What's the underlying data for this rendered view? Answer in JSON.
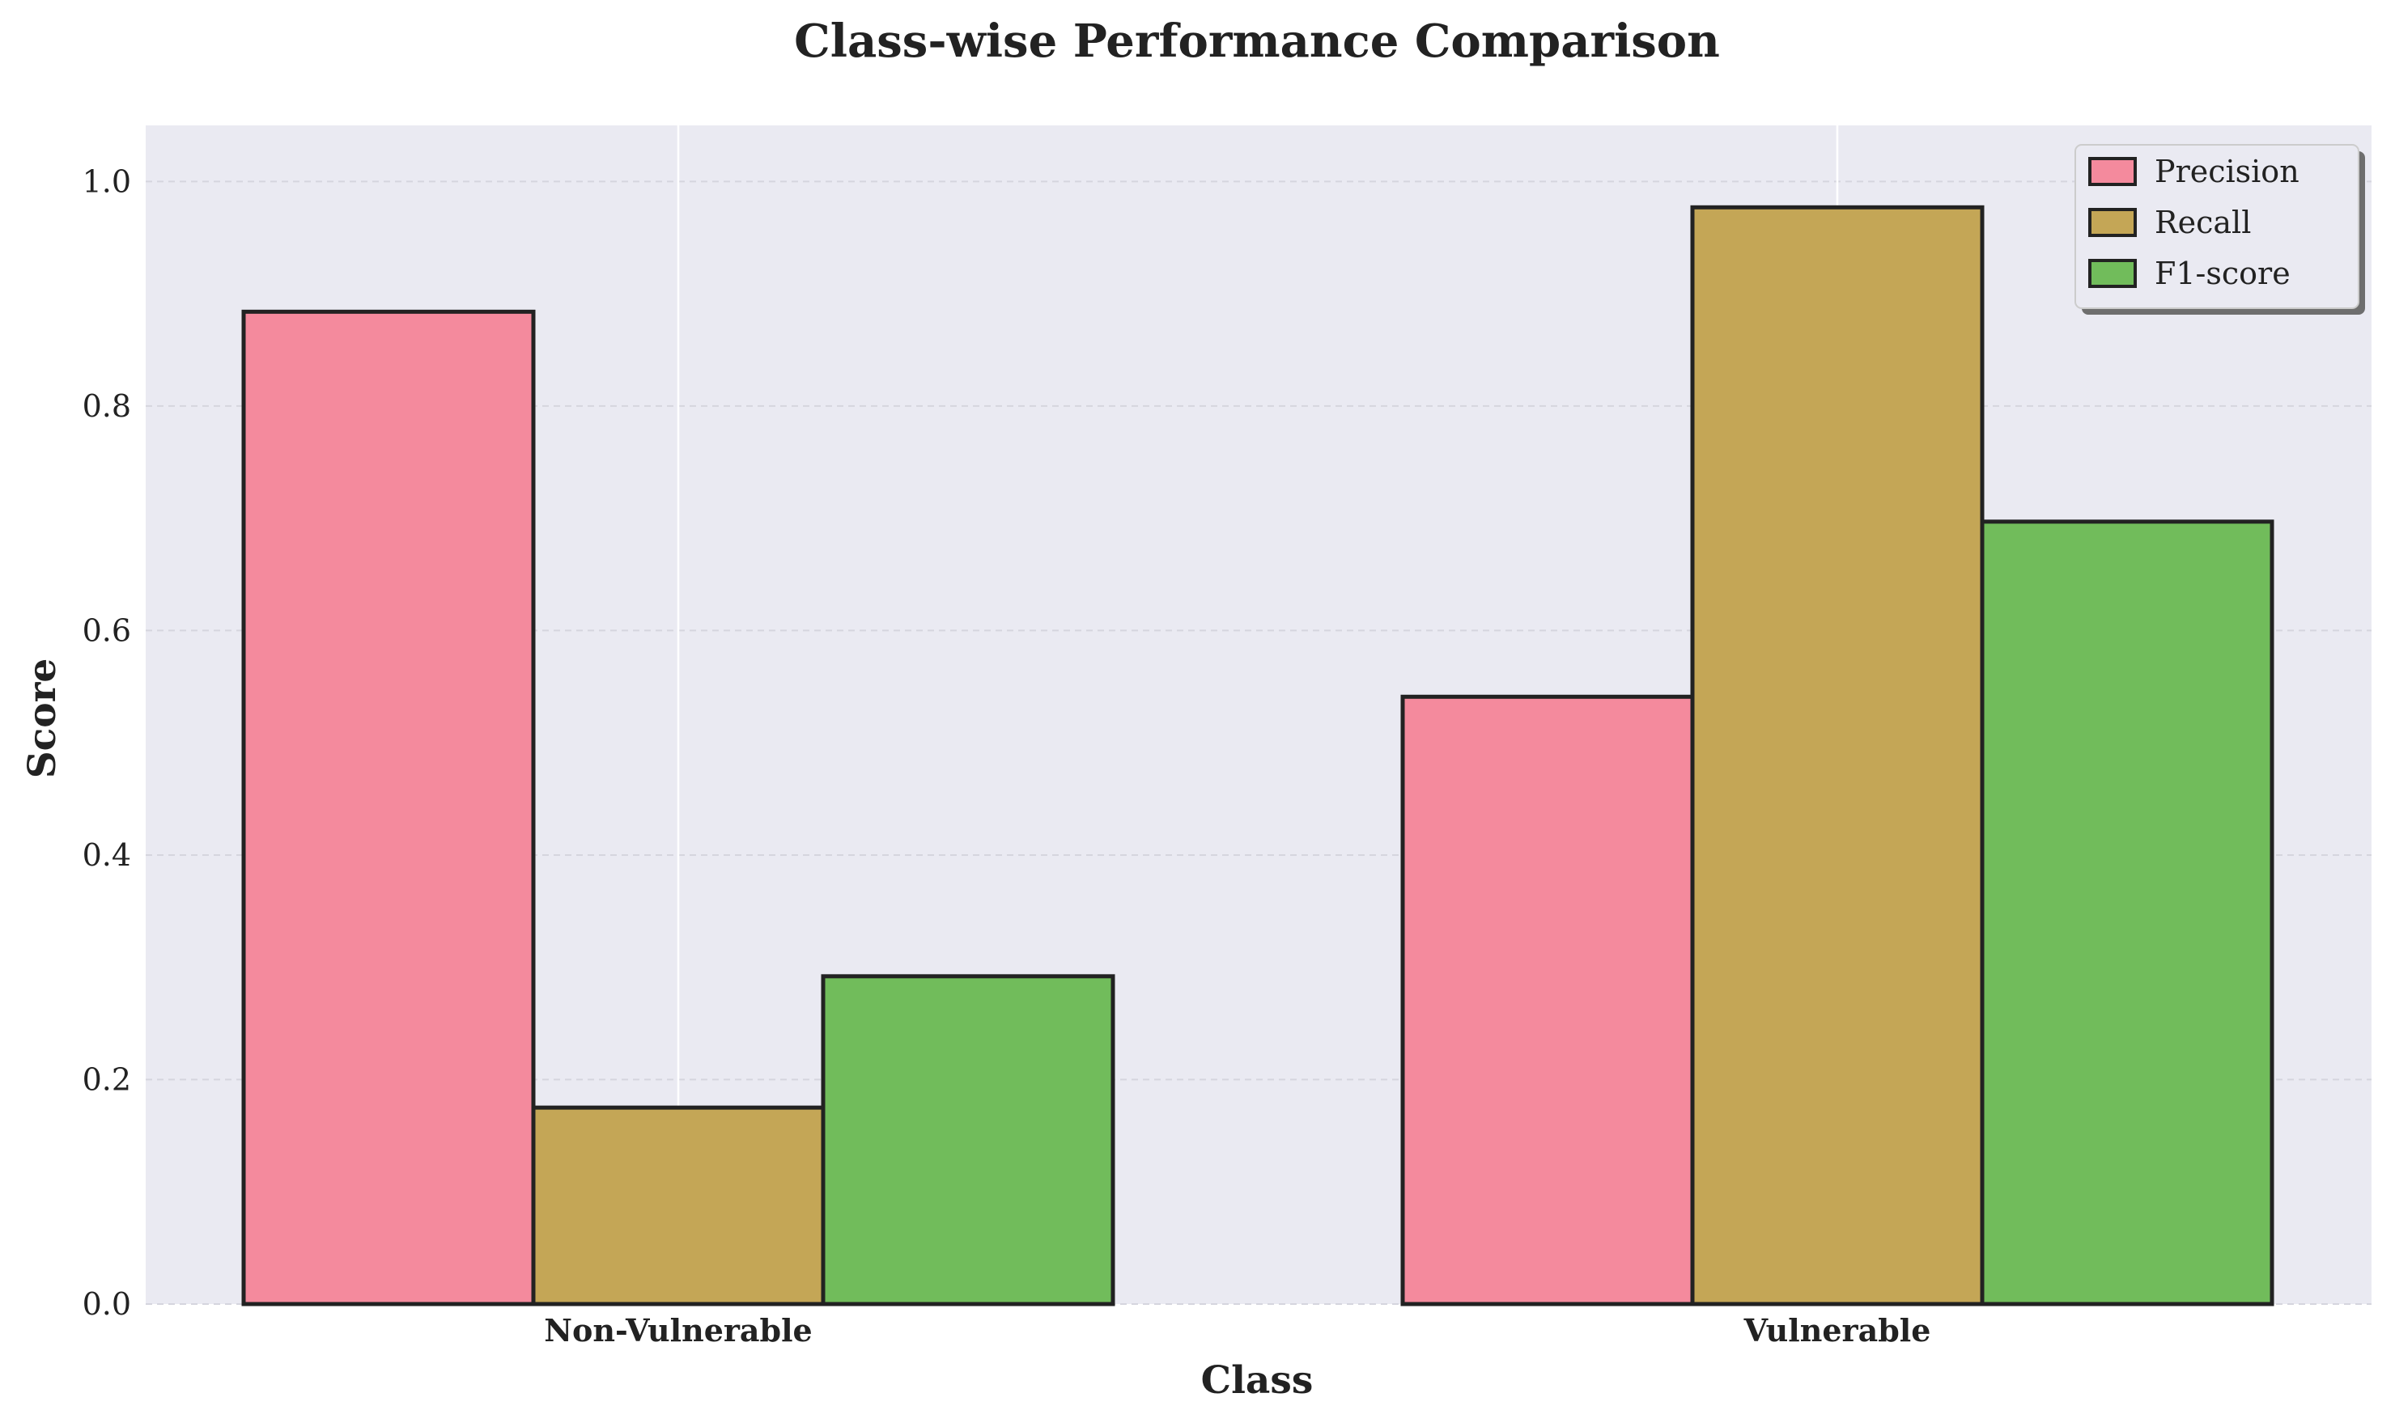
{
  "chart_data": {
    "type": "bar",
    "title": "Class-wise Performance Comparison",
    "xlabel": "Class",
    "ylabel": "Score",
    "categories": [
      "Non-Vulnerable",
      "Vulnerable"
    ],
    "series": [
      {
        "name": "Precision",
        "values": [
          0.884,
          0.541
        ],
        "color": "#f48a9d"
      },
      {
        "name": "Recall",
        "values": [
          0.175,
          0.977
        ],
        "color": "#c4a656"
      },
      {
        "name": "F1-score",
        "values": [
          0.292,
          0.697
        ],
        "color": "#71bc5b"
      }
    ],
    "ylim": [
      0,
      1.05
    ],
    "yticks": [
      "0.0",
      "0.2",
      "0.4",
      "0.6",
      "0.8",
      "1.0"
    ],
    "grid": true,
    "legend_position": "top-right",
    "background_color": "#eaeaf2",
    "bar_edge_color": "#222222"
  }
}
